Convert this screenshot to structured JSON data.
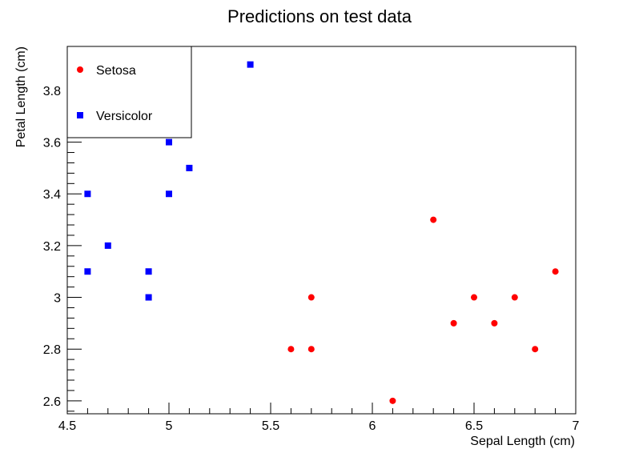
{
  "chart_data": {
    "type": "scatter",
    "title": "Predictions on test data",
    "xlabel": "Sepal Length (cm)",
    "ylabel": "Petal Length (cm)",
    "xlim": [
      4.5,
      7.0
    ],
    "ylim": [
      2.55,
      3.97
    ],
    "x_ticks": [
      {
        "value": 4.5,
        "label": "4.5"
      },
      {
        "value": 5.0,
        "label": "5"
      },
      {
        "value": 5.5,
        "label": "5.5"
      },
      {
        "value": 6.0,
        "label": "6"
      },
      {
        "value": 6.5,
        "label": "6.5"
      },
      {
        "value": 7.0,
        "label": "7"
      }
    ],
    "y_ticks": [
      {
        "value": 2.6,
        "label": "2.6"
      },
      {
        "value": 2.8,
        "label": "2.8"
      },
      {
        "value": 3.0,
        "label": "3"
      },
      {
        "value": 3.2,
        "label": "3.2"
      },
      {
        "value": 3.4,
        "label": "3.4"
      },
      {
        "value": 3.6,
        "label": "3.6"
      },
      {
        "value": 3.8,
        "label": "3.8"
      }
    ],
    "grid": false,
    "legend_position": "top-left",
    "series": [
      {
        "name": "Setosa",
        "color": "#ff0000",
        "marker": "circle",
        "points": [
          {
            "x": 5.6,
            "y": 2.8
          },
          {
            "x": 5.7,
            "y": 2.8
          },
          {
            "x": 5.7,
            "y": 3.0
          },
          {
            "x": 6.1,
            "y": 2.6
          },
          {
            "x": 6.3,
            "y": 3.3
          },
          {
            "x": 6.4,
            "y": 2.9
          },
          {
            "x": 6.5,
            "y": 3.0
          },
          {
            "x": 6.6,
            "y": 2.9
          },
          {
            "x": 6.7,
            "y": 3.0
          },
          {
            "x": 6.8,
            "y": 2.8
          },
          {
            "x": 6.9,
            "y": 3.1
          }
        ]
      },
      {
        "name": "Versicolor",
        "color": "#0000ff",
        "marker": "square",
        "points": [
          {
            "x": 4.6,
            "y": 3.1
          },
          {
            "x": 4.6,
            "y": 3.4
          },
          {
            "x": 4.7,
            "y": 3.2
          },
          {
            "x": 4.9,
            "y": 3.0
          },
          {
            "x": 4.9,
            "y": 3.1
          },
          {
            "x": 5.0,
            "y": 3.4
          },
          {
            "x": 5.0,
            "y": 3.6
          },
          {
            "x": 5.1,
            "y": 3.5
          },
          {
            "x": 5.4,
            "y": 3.9
          }
        ]
      }
    ]
  }
}
